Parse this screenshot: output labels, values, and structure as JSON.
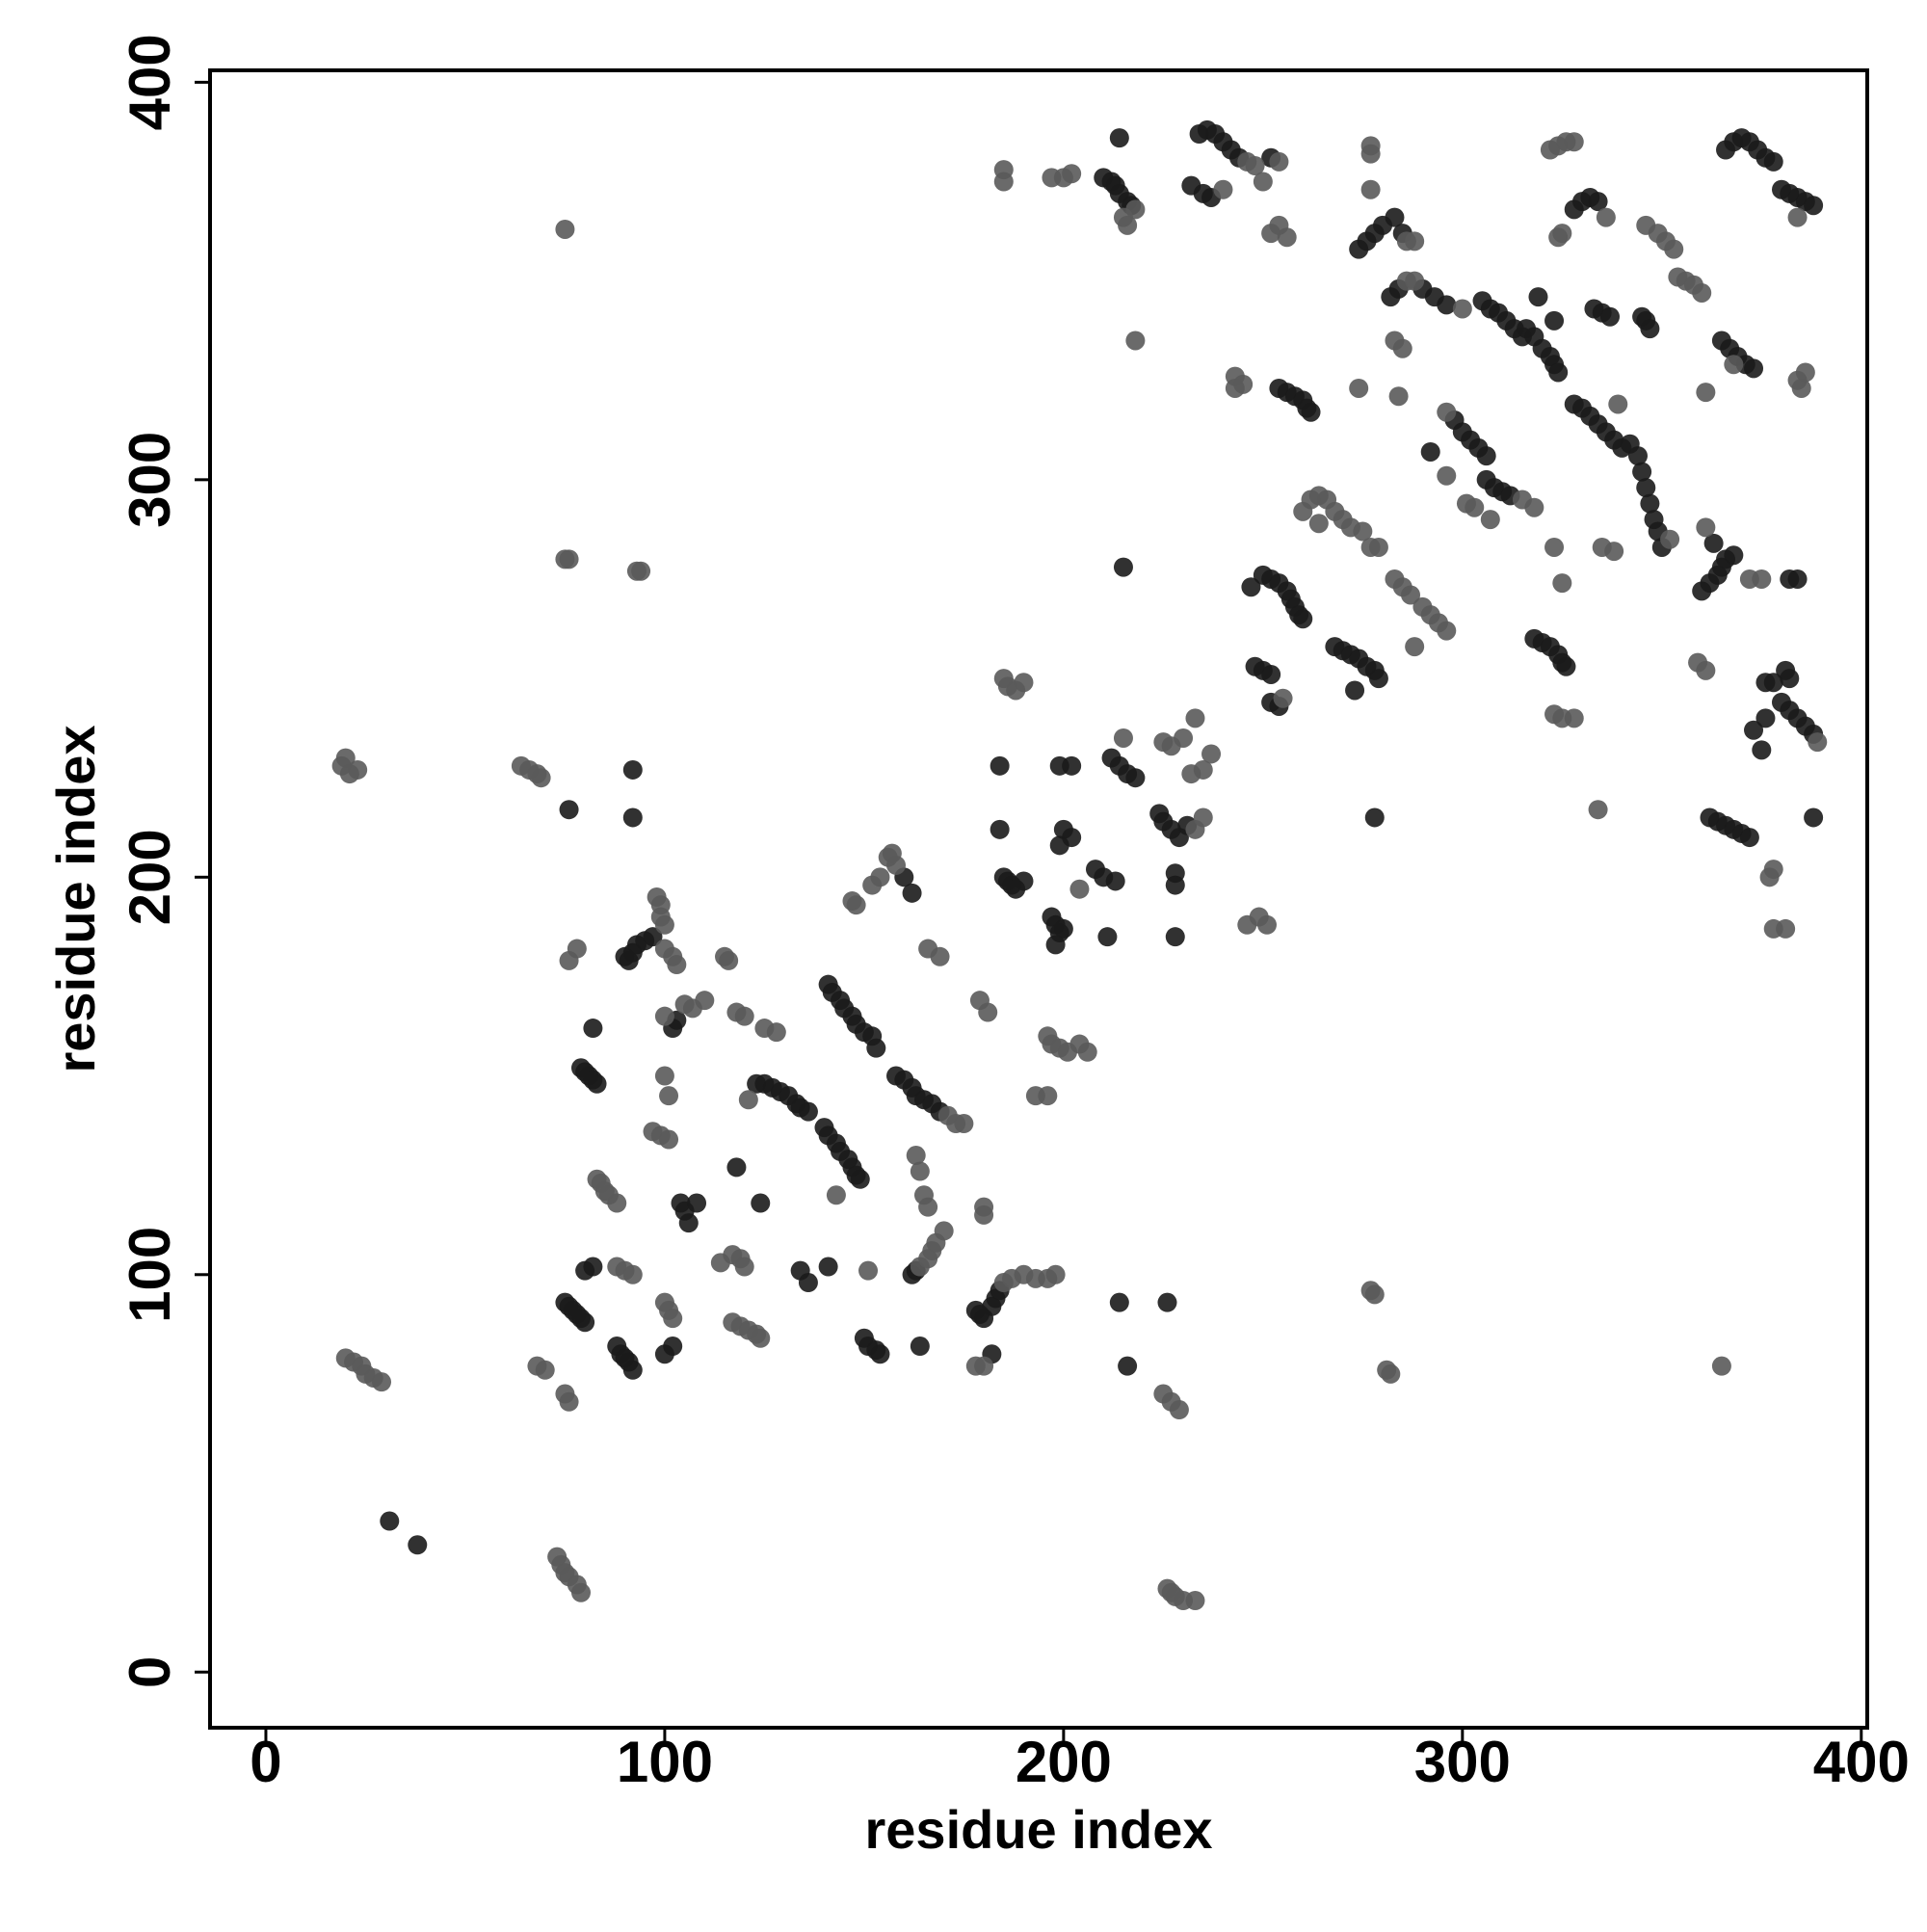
{
  "chart_data": {
    "type": "scatter",
    "x_label": "residue index",
    "y_label": "residue index",
    "xlim": [
      -14,
      401.5
    ],
    "ylim": [
      -14,
      403
    ],
    "xticks": [
      0,
      100,
      200,
      300,
      400
    ],
    "yticks": [
      0,
      100,
      200,
      300,
      400
    ],
    "grid": false,
    "series": [
      {
        "color": "#1b1b1b",
        "x": [
          92,
          92,
          76,
          31,
          38,
          79,
          80,
          81,
          82,
          83,
          82,
          75,
          76,
          77,
          78,
          79,
          80,
          80,
          82,
          88,
          89,
          90,
          91,
          92,
          90,
          91,
          92,
          93,
          95,
          97,
          102,
          103,
          104,
          105,
          106,
          108,
          100,
          102,
          118,
          124,
          123,
          125,
          127,
          129,
          131,
          133,
          134,
          136,
          134,
          136,
          141,
          142,
          144,
          145,
          147,
          148,
          150,
          152,
          153,
          140,
          141,
          143,
          144,
          146,
          147,
          148,
          149,
          160,
          162,
          150,
          151,
          153,
          154,
          141,
          158,
          160,
          162,
          163,
          165,
          167,
          169,
          162,
          163,
          164,
          178,
          179,
          180,
          182,
          183,
          184,
          182,
          184,
          184,
          185,
          186,
          187,
          188,
          190,
          197,
          198,
          199,
          200,
          198,
          199,
          200,
          202,
          199,
          202,
          208,
          210,
          213,
          211,
          214,
          216,
          215,
          212,
          214,
          216,
          218,
          226,
          228,
          228,
          228,
          224,
          225,
          227,
          229,
          231,
          210,
          212,
          213,
          214,
          216,
          217,
          214,
          232,
          235,
          237,
          234,
          236,
          238,
          240,
          242,
          244,
          252,
          250,
          252,
          248,
          252,
          254,
          247,
          250,
          252,
          254,
          256,
          257,
          258,
          259,
          260,
          254,
          256,
          258,
          260,
          261,
          262,
          268,
          270,
          272,
          274,
          276,
          278,
          279,
          273,
          278,
          274,
          276,
          278,
          280,
          283,
          285,
          282,
          284,
          290,
          293,
          296,
          298,
          300,
          302,
          304,
          306,
          292,
          305,
          307,
          309,
          311,
          313,
          315,
          306,
          308,
          310,
          312,
          316,
          318,
          320,
          322,
          323,
          324,
          318,
          320,
          322,
          324,
          325,
          326,
          319,
          323,
          328,
          330,
          332,
          334,
          328,
          330,
          332,
          334,
          336,
          338,
          340,
          333,
          335,
          337,
          345,
          346,
          347,
          342,
          344,
          345,
          346,
          347,
          348,
          349,
          350,
          360,
          362,
          364,
          365,
          366,
          368,
          363,
          362,
          364,
          366,
          368,
          370,
          372,
          365,
          367,
          369,
          371,
          373,
          366,
          368,
          370,
          372,
          374,
          376,
          378,
          373,
          375,
          376,
          376,
          378,
          380,
          382,
          384,
          386,
          388,
          381,
          382,
          382,
          384,
          380,
          382,
          384,
          386,
          388,
          388
        ],
        "values": [
          227,
          215,
          217,
          38,
          32,
          152,
          151,
          150,
          149,
          148,
          162,
          93,
          92,
          91,
          90,
          89,
          88,
          101,
          102,
          82,
          80,
          79,
          78,
          76,
          180,
          179,
          181,
          183,
          184,
          185,
          162,
          164,
          118,
          116,
          113,
          118,
          80,
          82,
          127,
          118,
          148,
          148,
          147,
          146,
          145,
          143,
          142,
          141,
          101,
          98,
          173,
          171,
          169,
          167,
          165,
          163,
          161,
          160,
          157,
          137,
          135,
          133,
          131,
          129,
          127,
          125,
          124,
          200,
          196,
          84,
          82,
          81,
          80,
          102,
          150,
          149,
          147,
          145,
          144,
          143,
          141,
          100,
          101,
          82,
          91,
          90,
          89,
          92,
          94,
          96,
          80,
          228,
          212,
          200,
          199,
          198,
          197,
          199,
          190,
          188,
          186,
          187,
          183,
          208,
          212,
          210,
          228,
          228,
          202,
          200,
          199,
          185,
          93,
          77,
          278,
          230,
          228,
          226,
          225,
          93,
          201,
          198,
          185,
          216,
          214,
          212,
          210,
          213,
          376,
          375,
          374,
          372,
          370,
          369,
          386,
          374,
          372,
          371,
          387,
          388,
          387,
          385,
          383,
          381,
          381,
          252,
          251,
          253,
          244,
          243,
          273,
          276,
          275,
          274,
          272,
          270,
          268,
          266,
          265,
          323,
          322,
          321,
          320,
          318,
          317,
          258,
          257,
          256,
          255,
          253,
          252,
          250,
          247,
          215,
          358,
          360,
          362,
          364,
          366,
          362,
          346,
          348,
          348,
          346,
          344,
          315,
          312,
          310,
          308,
          306,
          307,
          345,
          343,
          342,
          340,
          338,
          336,
          300,
          298,
          297,
          296,
          338,
          336,
          333,
          331,
          329,
          327,
          260,
          259,
          258,
          256,
          254,
          253,
          346,
          340,
          368,
          370,
          371,
          370,
          319,
          318,
          316,
          314,
          312,
          310,
          308,
          343,
          342,
          341,
          341,
          340,
          338,
          309,
          306,
          302,
          298,
          294,
          290,
          287,
          283,
          272,
          274,
          276,
          278,
          280,
          281,
          284,
          215,
          214,
          213,
          212,
          211,
          210,
          335,
          333,
          331,
          329,
          328,
          383,
          385,
          386,
          385,
          383,
          381,
          380,
          237,
          232,
          240,
          249,
          249,
          244,
          242,
          240,
          238,
          236,
          252,
          250,
          275,
          275,
          373,
          372,
          371,
          370,
          369,
          215
        ]
      },
      {
        "color": "#5a5a5a",
        "x": [
          20,
          19,
          21,
          23,
          75,
          75,
          76,
          94,
          93,
          64,
          66,
          68,
          69,
          20,
          22,
          24,
          25,
          27,
          29,
          68,
          70,
          75,
          76,
          73,
          74,
          75,
          76,
          78,
          79,
          78,
          76,
          83,
          84,
          85,
          86,
          88,
          88,
          90,
          92,
          98,
          99,
          99,
          100,
          100,
          102,
          103,
          100,
          105,
          107,
          110,
          100,
          101,
          97,
          99,
          101,
          100,
          101,
          102,
          115,
          116,
          118,
          120,
          121,
          114,
          117,
          119,
          120,
          117,
          119,
          121,
          123,
          124,
          125,
          128,
          147,
          148,
          152,
          154,
          156,
          157,
          158,
          151,
          143,
          171,
          173,
          175,
          163,
          164,
          165,
          166,
          164,
          166,
          167,
          168,
          170,
          166,
          169,
          179,
          181,
          180,
          180,
          185,
          187,
          190,
          193,
          196,
          198,
          178,
          180,
          185,
          186,
          188,
          190,
          193,
          196,
          196,
          197,
          199,
          201,
          204,
          206,
          204,
          215,
          218,
          215,
          216,
          225,
          227,
          229,
          226,
          227,
          228,
          230,
          233,
          233,
          235,
          225,
          227,
          230,
          233,
          232,
          235,
          237,
          246,
          249,
          251,
          185,
          185,
          197,
          200,
          202,
          218,
          246,
          248,
          254,
          240,
          250,
          243,
          245,
          243,
          252,
          254,
          256,
          255,
          262,
          264,
          266,
          268,
          264,
          260,
          270,
          272,
          275,
          277,
          279,
          274,
          277,
          277,
          277,
          278,
          277,
          281,
          282,
          286,
          288,
          283,
          285,
          284,
          286,
          288,
          300,
          283,
          285,
          287,
          290,
          292,
          294,
          296,
          288,
          296,
          296,
          301,
          303,
          315,
          318,
          307,
          323,
          325,
          328,
          323,
          325,
          324,
          325,
          322,
          324,
          326,
          328,
          336,
          334,
          335,
          338,
          339,
          352,
          346,
          349,
          351,
          353,
          354,
          356,
          358,
          360,
          361,
          359,
          361,
          361,
          365,
          368,
          372,
          375,
          377,
          378,
          378,
          381,
          389,
          384,
          386,
          384,
          385
        ],
        "values": [
          230,
          228,
          226,
          227,
          363,
          280,
          280,
          277,
          277,
          228,
          227,
          226,
          225,
          79,
          78,
          77,
          75,
          74,
          73,
          77,
          76,
          70,
          68,
          29,
          27,
          25,
          24,
          22,
          20,
          182,
          179,
          124,
          123,
          121,
          120,
          118,
          102,
          101,
          100,
          195,
          193,
          190,
          188,
          182,
          180,
          178,
          165,
          168,
          167,
          169,
          150,
          145,
          136,
          135,
          134,
          93,
          91,
          89,
          180,
          179,
          166,
          165,
          144,
          103,
          105,
          104,
          102,
          88,
          87,
          86,
          85,
          84,
          162,
          161,
          194,
          193,
          198,
          200,
          205,
          206,
          203,
          101,
          120,
          140,
          138,
          138,
          130,
          126,
          120,
          117,
          102,
          104,
          106,
          108,
          111,
          182,
          180,
          169,
          166,
          117,
          115,
          98,
          99,
          100,
          99,
          99,
          100,
          77,
          77,
          250,
          248,
          247,
          249,
          145,
          145,
          160,
          158,
          157,
          156,
          158,
          156,
          197,
          235,
          368,
          366,
          364,
          70,
          68,
          66,
          21,
          20,
          19,
          18,
          18,
          212,
          215,
          234,
          233,
          235,
          240,
          226,
          227,
          231,
          188,
          190,
          188,
          378,
          375,
          376,
          376,
          377,
          335,
          380,
          379,
          380,
          373,
          375,
          326,
          324,
          323,
          362,
          364,
          361,
          245,
          295,
          296,
          295,
          292,
          289,
          292,
          290,
          288,
          287,
          283,
          283,
          323,
          384,
          382,
          373,
          95,
          96,
          76,
          75,
          360,
          360,
          335,
          333,
          321,
          350,
          350,
          343,
          275,
          273,
          271,
          268,
          266,
          264,
          262,
          258,
          317,
          301,
          294,
          293,
          295,
          293,
          290,
          241,
          240,
          240,
          283,
          274,
          361,
          362,
          383,
          384,
          385,
          385,
          366,
          217,
          283,
          282,
          319,
          285,
          364,
          362,
          360,
          358,
          351,
          350,
          349,
          347,
          322,
          254,
          252,
          288,
          77,
          329,
          275,
          275,
          200,
          202,
          187,
          187,
          234,
          366,
          327,
          325,
          323
        ]
      }
    ]
  }
}
